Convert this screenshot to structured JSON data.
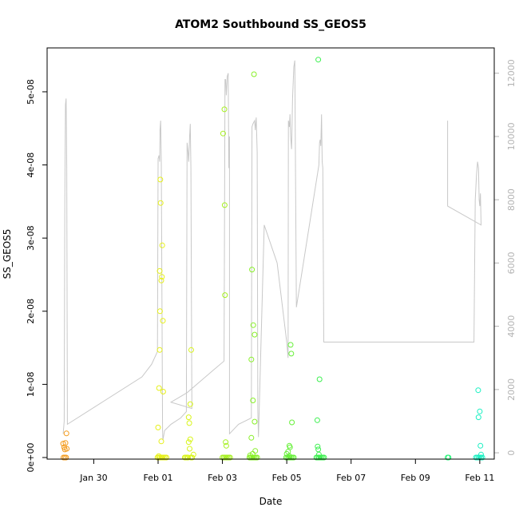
{
  "chart_data": {
    "type": "scatter",
    "title": "ATOM2 Southbound SS_GEOS5",
    "xlabel": "Date",
    "ylabel": "SS_GEOS5",
    "x_ticks": [
      "Jan 30",
      "Feb 01",
      "Feb 03",
      "Feb 05",
      "Feb 07",
      "Feb 09",
      "Feb 11"
    ],
    "x_tick_days": [
      30,
      32,
      34,
      36,
      38,
      40,
      42
    ],
    "xlim_days": [
      28.55,
      42.45
    ],
    "y_ticks": [
      "0e+00",
      "1e-08",
      "2e-08",
      "3e-08",
      "4e-08",
      "5e-08"
    ],
    "y_tick_values": [
      0,
      1e-08,
      2e-08,
      3e-08,
      4e-08,
      5e-08
    ],
    "ylim": [
      -2.2e-10,
      5.6e-08
    ],
    "y2_ticks": [
      "0",
      "2000",
      "4000",
      "6000",
      "8000",
      "10000",
      "12000"
    ],
    "y2_tick_values": [
      0,
      2000,
      4000,
      6000,
      8000,
      10000,
      12000
    ],
    "y2lim": [
      -200,
      12800
    ],
    "colors": {
      "line": "#c8c8c8",
      "axis": "#000000",
      "right_axis": "#b3b3b3"
    },
    "flights": [
      {
        "color": "#f39a1a",
        "points": [
          [
            29.05,
            1.9e-09
          ],
          [
            29.08,
            1.4e-09
          ],
          [
            29.1,
            1.1e-09
          ],
          [
            29.12,
            2e-09
          ],
          [
            29.15,
            3.3e-09
          ],
          [
            29.06,
            0
          ],
          [
            29.1,
            0
          ],
          [
            29.14,
            0
          ],
          [
            29.16,
            1.2e-09
          ]
        ]
      },
      {
        "color": "#e6f018",
        "points": [
          [
            32.0,
            4.1e-09
          ],
          [
            32.03,
            9.5e-09
          ],
          [
            32.05,
            1.47e-08
          ],
          [
            32.06,
            2e-08
          ],
          [
            32.05,
            2.55e-08
          ],
          [
            32.08,
            3.48e-08
          ],
          [
            32.07,
            3.8e-08
          ],
          [
            32.1,
            2.42e-08
          ],
          [
            32.12,
            2.47e-08
          ],
          [
            32.13,
            2.9e-08
          ],
          [
            32.15,
            1.87e-08
          ],
          [
            32.16,
            9e-09
          ],
          [
            32.1,
            2.2e-09
          ],
          [
            32.02,
            2e-10
          ],
          [
            32.06,
            0
          ],
          [
            32.1,
            0
          ],
          [
            32.14,
            0
          ],
          [
            32.18,
            0
          ],
          [
            32.22,
            0
          ],
          [
            32.26,
            0
          ],
          [
            31.98,
            0
          ],
          [
            32.02,
            0
          ]
        ]
      },
      {
        "color": "#d9f51a",
        "points": [
          [
            32.83,
            0
          ],
          [
            32.86,
            0
          ],
          [
            32.9,
            0
          ],
          [
            32.93,
            0
          ],
          [
            32.95,
            2.1e-09
          ],
          [
            32.95,
            5.5e-09
          ],
          [
            32.97,
            4.7e-09
          ],
          [
            32.98,
            1.2e-09
          ],
          [
            33.0,
            7.3e-09
          ],
          [
            33.03,
            1.47e-08
          ],
          [
            33.0,
            2.5e-09
          ],
          [
            33.02,
            0
          ],
          [
            33.06,
            0
          ],
          [
            33.1,
            4e-10
          ]
        ]
      },
      {
        "color": "#a6f020",
        "points": [
          [
            34.02,
            4.43e-08
          ],
          [
            34.06,
            4.76e-08
          ],
          [
            34.07,
            3.45e-08
          ],
          [
            34.08,
            2.22e-08
          ],
          [
            34.1,
            2.1e-09
          ],
          [
            34.12,
            1.6e-09
          ],
          [
            34.0,
            0
          ],
          [
            34.04,
            0
          ],
          [
            34.08,
            0
          ],
          [
            34.12,
            0
          ],
          [
            34.16,
            0
          ],
          [
            34.2,
            0
          ],
          [
            34.24,
            0
          ]
        ]
      },
      {
        "color": "#88f028",
        "points": [
          [
            34.9,
            1.34e-08
          ],
          [
            34.92,
            2.57e-08
          ],
          [
            34.96,
            1.81e-08
          ],
          [
            35.0,
            1.68e-08
          ],
          [
            34.95,
            7.8e-09
          ],
          [
            34.9,
            2.7e-09
          ],
          [
            35.0,
            4.9e-09
          ],
          [
            34.98,
            5.24e-08
          ],
          [
            35.02,
            9e-10
          ],
          [
            34.84,
            0
          ],
          [
            34.88,
            0
          ],
          [
            34.92,
            0
          ],
          [
            34.96,
            0
          ],
          [
            35.0,
            0
          ],
          [
            35.04,
            0
          ],
          [
            35.08,
            0
          ],
          [
            34.86,
            3e-10
          ],
          [
            34.94,
            5e-10
          ]
        ]
      },
      {
        "color": "#66f038",
        "points": [
          [
            35.98,
            0
          ],
          [
            36.02,
            0
          ],
          [
            36.06,
            0
          ],
          [
            36.1,
            0
          ],
          [
            36.14,
            0
          ],
          [
            36.18,
            0
          ],
          [
            36.22,
            0
          ],
          [
            36.0,
            5e-10
          ],
          [
            36.04,
            8e-10
          ],
          [
            36.08,
            1.6e-09
          ],
          [
            36.1,
            1.4e-09
          ],
          [
            36.12,
            1.54e-08
          ],
          [
            36.14,
            1.42e-08
          ],
          [
            36.16,
            4.8e-09
          ],
          [
            36.08,
            2e-10
          ]
        ]
      },
      {
        "color": "#3df050",
        "points": [
          [
            36.92,
            0
          ],
          [
            36.96,
            0
          ],
          [
            37.0,
            0
          ],
          [
            37.04,
            0
          ],
          [
            37.08,
            0
          ],
          [
            37.12,
            0
          ],
          [
            37.16,
            0
          ],
          [
            36.96,
            1.5e-09
          ],
          [
            36.98,
            1.1e-09
          ],
          [
            36.95,
            5.1e-09
          ],
          [
            36.98,
            5.44e-08
          ],
          [
            37.02,
            1.07e-08
          ],
          [
            37.0,
            4e-10
          ]
        ]
      },
      {
        "color": "#2af57a",
        "points": [
          [
            41.0,
            0
          ],
          [
            41.03,
            0
          ]
        ]
      },
      {
        "color": "#1af0c2",
        "points": [
          [
            41.88,
            0
          ],
          [
            41.92,
            0
          ],
          [
            41.96,
            0
          ],
          [
            42.0,
            0
          ],
          [
            42.04,
            0
          ],
          [
            42.08,
            0
          ],
          [
            41.95,
            9.2e-09
          ],
          [
            41.96,
            5.5e-09
          ],
          [
            42.0,
            6.3e-09
          ],
          [
            42.02,
            1.6e-09
          ],
          [
            42.04,
            4e-10
          ]
        ]
      }
    ],
    "altitude_series": [
      [
        29.05,
        600
      ],
      [
        29.08,
        1000
      ],
      [
        29.1,
        8000
      ],
      [
        29.12,
        11000
      ],
      [
        29.14,
        11200
      ],
      [
        29.16,
        9000
      ],
      [
        29.18,
        900
      ],
      [
        31.5,
        2400
      ],
      [
        31.8,
        2800
      ],
      [
        31.98,
        3200
      ],
      [
        32.0,
        9300
      ],
      [
        32.03,
        9400
      ],
      [
        32.05,
        9200
      ],
      [
        32.06,
        10200
      ],
      [
        32.08,
        10500
      ],
      [
        32.1,
        9200
      ],
      [
        32.12,
        5000
      ],
      [
        32.14,
        700
      ],
      [
        32.15,
        400
      ],
      [
        32.2,
        700
      ],
      [
        32.4,
        900
      ],
      [
        32.7,
        1100
      ],
      [
        32.88,
        1300
      ],
      [
        32.9,
        9800
      ],
      [
        32.93,
        9500
      ],
      [
        32.95,
        9200
      ],
      [
        32.98,
        10000
      ],
      [
        33.0,
        10400
      ],
      [
        33.02,
        9000
      ],
      [
        33.05,
        1400
      ],
      [
        32.4,
        1600
      ],
      [
        32.9,
        1900
      ],
      [
        33.7,
        2600
      ],
      [
        34.05,
        2900
      ],
      [
        34.08,
        11800
      ],
      [
        34.1,
        11800
      ],
      [
        34.12,
        11300
      ],
      [
        34.15,
        11900
      ],
      [
        34.18,
        12000
      ],
      [
        34.2,
        9000
      ],
      [
        34.22,
        10000
      ],
      [
        34.22,
        600
      ],
      [
        34.5,
        900
      ],
      [
        34.9,
        1100
      ],
      [
        34.92,
        10300
      ],
      [
        34.95,
        10400
      ],
      [
        35.0,
        10500
      ],
      [
        35.02,
        10200
      ],
      [
        35.05,
        10600
      ],
      [
        35.08,
        9500
      ],
      [
        35.1,
        1300
      ],
      [
        35.12,
        500
      ],
      [
        35.3,
        7200
      ],
      [
        35.7,
        6000
      ],
      [
        36.0,
        3500
      ],
      [
        36.04,
        3000
      ],
      [
        36.05,
        10500
      ],
      [
        36.08,
        10300
      ],
      [
        36.1,
        10700
      ],
      [
        36.12,
        10000
      ],
      [
        36.15,
        9600
      ],
      [
        36.18,
        11200
      ],
      [
        36.22,
        12200
      ],
      [
        36.25,
        12400
      ],
      [
        36.3,
        4600
      ],
      [
        37.0,
        9100
      ],
      [
        37.02,
        9800
      ],
      [
        37.04,
        9900
      ],
      [
        37.06,
        9700
      ],
      [
        37.08,
        10700
      ],
      [
        37.1,
        9200
      ],
      [
        37.12,
        9000
      ],
      [
        37.15,
        3500
      ],
      [
        39.0,
        3500
      ],
      [
        41.0,
        3500
      ],
      [
        41.82,
        3500
      ],
      [
        41.84,
        5800
      ],
      [
        41.86,
        8000
      ],
      [
        41.9,
        8800
      ],
      [
        41.93,
        9200
      ],
      [
        41.96,
        9000
      ],
      [
        41.98,
        8000
      ],
      [
        42.0,
        7800
      ],
      [
        42.02,
        8200
      ],
      [
        42.04,
        7200
      ],
      [
        41.0,
        7800
      ],
      [
        41.0,
        10500
      ]
    ]
  }
}
